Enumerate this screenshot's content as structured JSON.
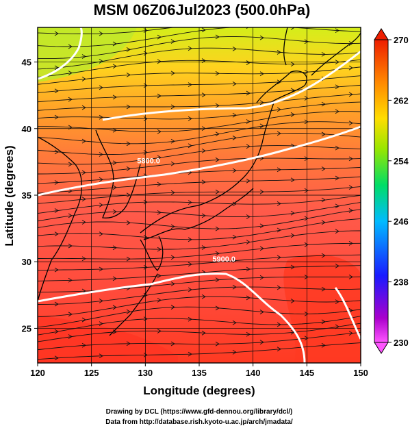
{
  "title": "MSM 06Z06Jul2023 (500.0hPa)",
  "xlabel": "Longitude (degrees)",
  "ylabel": "Latitude  (degrees)",
  "credits": {
    "line1": "Drawing by DCL (https://www.gfd-dennou.org/library/dcl/)",
    "line2": "Data from http://database.rish.kyoto-u.ac.jp/arch/jmadata/"
  },
  "map": {
    "lon_range": [
      120,
      150
    ],
    "lat_range": [
      22.4,
      47.6
    ],
    "lon_ticks": [
      "120",
      "125",
      "130",
      "135",
      "140",
      "145",
      "150"
    ],
    "lat_ticks": [
      "25",
      "30",
      "35",
      "40",
      "45"
    ],
    "contours": [
      {
        "label": "5800.0",
        "lon": 130.3,
        "lat": 37.4
      },
      {
        "label": "5900.0",
        "lon": 137.3,
        "lat": 30.0
      }
    ]
  },
  "colorbar": {
    "range": [
      230,
      270
    ],
    "tick_labels": [
      "270",
      "262",
      "254",
      "246",
      "238",
      "230"
    ],
    "stops": [
      "#ff44ff",
      "#9900cc",
      "#1a1aff",
      "#00bbff",
      "#00dd66",
      "#aaee00",
      "#ffcc00",
      "#ff8800",
      "#ee2200"
    ]
  },
  "field_colors": {
    "cold": "#ccee22",
    "mid": "#ffaa22",
    "warm": "#ff6644",
    "hot": "#ff3322"
  }
}
